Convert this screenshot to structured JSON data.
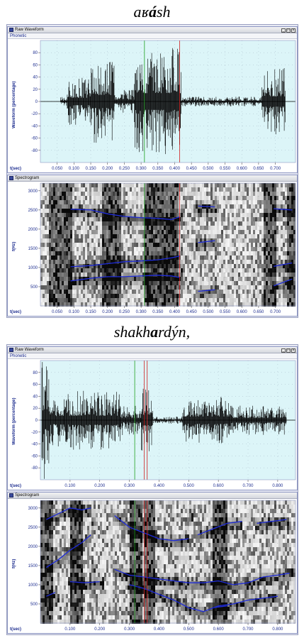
{
  "captions": {
    "first": {
      "pre": "aʁ",
      "bold": "á",
      "post": "sh"
    },
    "second": {
      "pre": "shakh",
      "bold": "a",
      "post": "rdýn,"
    }
  },
  "windows": {
    "waveform_title": "Raw Waveform",
    "waveform_menu": "Phonetic",
    "spectrogram_title": "Spectrogram",
    "waveform_ylabel": "Waveform (percentage)",
    "spectrogram_ylabel": "f(Hz)",
    "xlabel": "t(sec)",
    "window_buttons": [
      "_",
      "□",
      "×"
    ]
  },
  "colors": {
    "waveform_bg": "#dcf5f8",
    "axis_text": "#1d2d8f",
    "formant": "#1e2bd8",
    "cursor_green": "#20a020",
    "cursor_red": "#d02020"
  },
  "chart_data": [
    {
      "type": "line",
      "panel": "aʁásh waveform",
      "ylabel": "Waveform (percentage)",
      "ylim": [
        -100,
        100
      ],
      "y_ticks": [
        "80",
        "60",
        "40",
        "20",
        "0",
        "-20",
        "-40",
        "-60",
        "-80"
      ],
      "xlim": [
        0.0,
        0.76
      ],
      "x_ticks": [
        "0.050",
        "0.100",
        "0.150",
        "0.200",
        "0.250",
        "0.300",
        "0.350",
        "0.400",
        "0.450",
        "0.500",
        "0.550",
        "0.600",
        "0.650",
        "0.700"
      ],
      "x_tick_values": [
        0.05,
        0.1,
        0.15,
        0.2,
        0.25,
        0.3,
        0.35,
        0.4,
        0.45,
        0.5,
        0.55,
        0.6,
        0.65,
        0.7
      ],
      "bursts": [
        {
          "t0": 0.06,
          "t1": 0.08,
          "amp": 8
        },
        {
          "t0": 0.08,
          "t1": 0.15,
          "amp": 40
        },
        {
          "t0": 0.15,
          "t1": 0.22,
          "amp": 70
        },
        {
          "t0": 0.22,
          "t1": 0.28,
          "amp": 20
        },
        {
          "t0": 0.28,
          "t1": 0.42,
          "amp": 90
        },
        {
          "t0": 0.42,
          "t1": 0.66,
          "amp": 8
        },
        {
          "t0": 0.66,
          "t1": 0.73,
          "amp": 55
        }
      ],
      "cursors": [
        {
          "t": 0.31,
          "color": "green"
        },
        {
          "t": 0.415,
          "color": "red"
        }
      ]
    },
    {
      "type": "line",
      "panel": "aʁásh spectrogram",
      "ylabel": "f(Hz)",
      "ylim": [
        0,
        3200
      ],
      "y_ticks": [
        "3000",
        "2500",
        "2000",
        "1500",
        "1000",
        "500"
      ],
      "y_tick_values": [
        3000,
        2500,
        2000,
        1500,
        1000,
        500
      ],
      "xlim": [
        0.0,
        0.76
      ],
      "x_ticks": [
        "0.050",
        "0.100",
        "0.150",
        "0.200",
        "0.250",
        "0.300",
        "0.350",
        "0.400",
        "0.450",
        "0.500",
        "0.550",
        "0.600",
        "0.650",
        "0.700"
      ],
      "x_tick_values": [
        0.05,
        0.1,
        0.15,
        0.2,
        0.25,
        0.3,
        0.35,
        0.4,
        0.45,
        0.5,
        0.55,
        0.6,
        0.65,
        0.7
      ],
      "dark_regions": [
        [
          0.02,
          0.09
        ],
        [
          0.18,
          0.24
        ],
        [
          0.31,
          0.41
        ],
        [
          0.66,
          0.7
        ],
        [
          0.73,
          0.76
        ]
      ],
      "formants": [
        {
          "x": [
            0.09,
            0.15,
            0.2,
            0.25,
            0.3,
            0.35,
            0.39,
            0.415
          ],
          "y": [
            2520,
            2500,
            2400,
            2330,
            2300,
            2280,
            2250,
            2320
          ]
        },
        {
          "x": [
            0.09,
            0.15,
            0.2,
            0.25,
            0.3,
            0.35,
            0.39,
            0.415
          ],
          "y": [
            1020,
            1050,
            1100,
            1150,
            1170,
            1200,
            1250,
            1300
          ]
        },
        {
          "x": [
            0.09,
            0.15,
            0.2,
            0.25,
            0.3,
            0.35,
            0.39,
            0.415
          ],
          "y": [
            650,
            720,
            760,
            760,
            780,
            800,
            780,
            740
          ]
        },
        {
          "x": [
            0.47,
            0.52
          ],
          "y": [
            2600,
            2580
          ]
        },
        {
          "x": [
            0.47,
            0.52
          ],
          "y": [
            1650,
            1700
          ]
        },
        {
          "x": [
            0.47,
            0.52
          ],
          "y": [
            380,
            420
          ]
        },
        {
          "x": [
            0.695,
            0.75
          ],
          "y": [
            2530,
            2500
          ]
        },
        {
          "x": [
            0.695,
            0.75
          ],
          "y": [
            1030,
            1120
          ]
        },
        {
          "x": [
            0.695,
            0.75
          ],
          "y": [
            520,
            700
          ]
        }
      ],
      "cursors": [
        {
          "t": 0.31,
          "color": "green"
        },
        {
          "t": 0.415,
          "color": "red"
        }
      ]
    },
    {
      "type": "line",
      "panel": "shakhardýn waveform",
      "ylabel": "Waveform (percentage)",
      "ylim": [
        -100,
        100
      ],
      "y_ticks": [
        "80",
        "60",
        "40",
        "20",
        "0",
        "-20",
        "-40",
        "-60",
        "-80"
      ],
      "xlim": [
        0.0,
        0.86
      ],
      "x_ticks": [
        "0.100",
        "0.200",
        "0.300",
        "0.400",
        "0.500",
        "0.600",
        "0.700",
        "0.800"
      ],
      "x_tick_values": [
        0.1,
        0.2,
        0.3,
        0.4,
        0.5,
        0.6,
        0.7,
        0.8
      ],
      "bursts": [
        {
          "t0": 0.005,
          "t1": 0.03,
          "amp": 100
        },
        {
          "t0": 0.03,
          "t1": 0.08,
          "amp": 45
        },
        {
          "t0": 0.08,
          "t1": 0.27,
          "amp": 50
        },
        {
          "t0": 0.27,
          "t1": 0.34,
          "amp": 25
        },
        {
          "t0": 0.34,
          "t1": 0.38,
          "amp": 55
        },
        {
          "t0": 0.38,
          "t1": 0.48,
          "amp": 6
        },
        {
          "t0": 0.48,
          "t1": 0.64,
          "amp": 40
        },
        {
          "t0": 0.64,
          "t1": 0.83,
          "amp": 25
        }
      ],
      "cursors": [
        {
          "t": 0.318,
          "color": "green"
        },
        {
          "t": 0.35,
          "color": "red"
        },
        {
          "t": 0.36,
          "color": "red"
        }
      ]
    },
    {
      "type": "line",
      "panel": "shakhardýn spectrogram",
      "ylabel": "f(Hz)",
      "ylim": [
        0,
        3200
      ],
      "y_ticks": [
        "3000",
        "2500",
        "2000",
        "1500",
        "1000",
        "500"
      ],
      "y_tick_values": [
        3000,
        2500,
        2000,
        1500,
        1000,
        500
      ],
      "xlim": [
        0.0,
        0.86
      ],
      "x_ticks": [
        "0.100",
        "0.200",
        "0.300",
        "0.400",
        "0.500",
        "0.600",
        "0.700",
        "0.800"
      ],
      "x_tick_values": [
        0.1,
        0.2,
        0.3,
        0.4,
        0.5,
        0.6,
        0.7,
        0.8
      ],
      "dark_regions": [
        [
          0.0,
          0.04
        ],
        [
          0.1,
          0.14
        ],
        [
          0.3,
          0.34
        ],
        [
          0.35,
          0.38
        ],
        [
          0.58,
          0.63
        ]
      ],
      "formants": [
        {
          "x": [
            0.02,
            0.06,
            0.1,
            0.14,
            0.17
          ],
          "y": [
            2700,
            2850,
            3000,
            2950,
            3000
          ]
        },
        {
          "x": [
            0.02,
            0.06,
            0.1,
            0.14,
            0.17
          ],
          "y": [
            1450,
            1650,
            1900,
            2100,
            2300
          ]
        },
        {
          "x": [
            0.02,
            0.05
          ],
          "y": [
            700,
            800
          ]
        },
        {
          "x": [
            0.1,
            0.15,
            0.2
          ],
          "y": [
            1080,
            1050,
            1080
          ]
        },
        {
          "x": [
            0.25,
            0.3,
            0.35,
            0.4,
            0.45,
            0.5
          ],
          "y": [
            2800,
            2500,
            2350,
            2200,
            2150,
            2200
          ]
        },
        {
          "x": [
            0.25,
            0.3,
            0.35,
            0.4,
            0.45,
            0.5,
            0.55,
            0.6,
            0.65,
            0.7,
            0.75,
            0.8,
            0.84
          ],
          "y": [
            1400,
            1250,
            1200,
            1150,
            1100,
            1050,
            1050,
            1100,
            1000,
            1050,
            1200,
            1250,
            1300
          ]
        },
        {
          "x": [
            0.3,
            0.35,
            0.4,
            0.45,
            0.5,
            0.55,
            0.6,
            0.65,
            0.7,
            0.75,
            0.8
          ],
          "y": [
            1000,
            900,
            750,
            600,
            400,
            300,
            450,
            500,
            600,
            650,
            700
          ]
        },
        {
          "x": [
            0.53,
            0.58,
            0.63,
            0.68
          ],
          "y": [
            2300,
            2450,
            2600,
            2650
          ]
        },
        {
          "x": [
            0.73,
            0.78,
            0.83
          ],
          "y": [
            2600,
            2650,
            2700
          ]
        },
        {
          "x": [
            0.58,
            0.63
          ],
          "y": [
            400,
            450
          ]
        }
      ],
      "cursors": [
        {
          "t": 0.318,
          "color": "green"
        },
        {
          "t": 0.35,
          "color": "red"
        },
        {
          "t": 0.36,
          "color": "red"
        }
      ]
    }
  ]
}
